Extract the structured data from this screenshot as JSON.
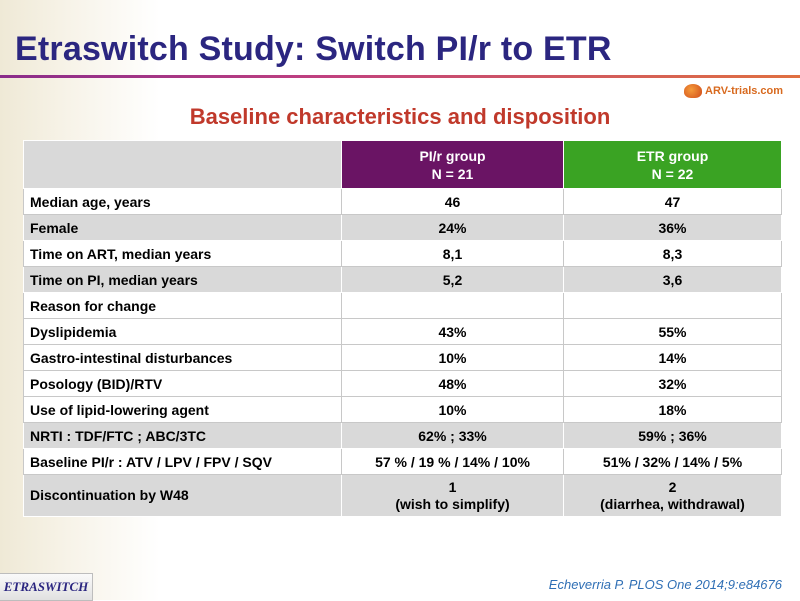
{
  "title": "Etraswitch Study: Switch PI/r to ETR",
  "logo_text": "ARV-trials.com",
  "subtitle": "Baseline characteristics and disposition",
  "table": {
    "header": {
      "col1_line1": "PI/r group",
      "col1_line2": "N = 21",
      "col2_line1": "ETR group",
      "col2_line2": "N = 22"
    },
    "rows": [
      {
        "label": "Median age, years",
        "a": "46",
        "b": "47"
      },
      {
        "label": "Female",
        "a": "24%",
        "b": "36%"
      },
      {
        "label": "Time on ART, median years",
        "a": "8,1",
        "b": "8,3"
      },
      {
        "label": "Time on PI, median years",
        "a": "5,2",
        "b": "3,6"
      },
      {
        "label": "Reason for change",
        "a": "",
        "b": ""
      },
      {
        "label": "Dyslipidemia",
        "a": "43%",
        "b": "55%"
      },
      {
        "label": "Gastro-intestinal disturbances",
        "a": "10%",
        "b": "14%"
      },
      {
        "label": "Posology (BID)/RTV",
        "a": "48%",
        "b": "32%"
      },
      {
        "label": "Use of lipid-lowering agent",
        "a": "10%",
        "b": "18%"
      },
      {
        "label": "NRTI : TDF/FTC ; ABC/3TC",
        "a": "62% ; 33%",
        "b": "59% ; 36%"
      },
      {
        "label": "Baseline PI/r : ATV / LPV / FPV / SQV",
        "a": "57 % / 19 % / 14% / 10%",
        "b": "51% / 32% / 14% / 5%"
      },
      {
        "label": "Discontinuation by W48",
        "a_line1": "1",
        "a_line2": "(wish to simplify)",
        "b_line1": "2",
        "b_line2": "(diarrhea, withdrawal)"
      }
    ]
  },
  "footer_badge": "ETRASWITCH",
  "citation": "Echeverria P. PLOS One 2014;9:e84676",
  "colors": {
    "title": "#2b2680",
    "subtitle": "#c0392b",
    "pir_header": "#6a1464",
    "etr_header": "#3aa323",
    "gray_row": "#d9d9d9",
    "citation": "#2f6fb5"
  }
}
